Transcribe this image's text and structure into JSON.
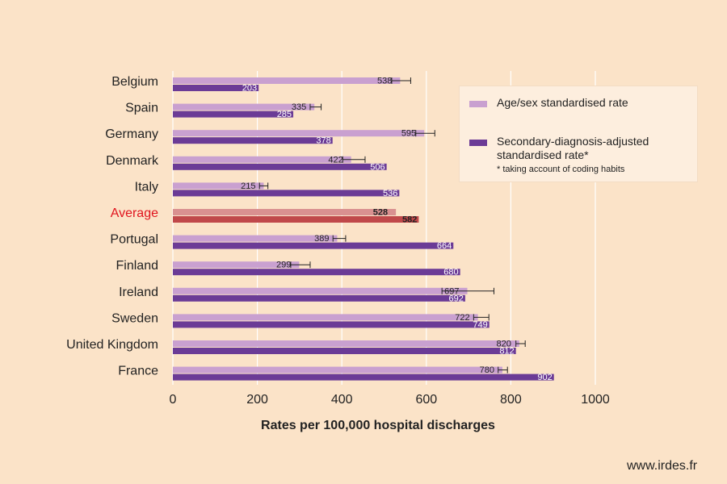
{
  "chart_data": {
    "type": "bar",
    "orientation": "horizontal",
    "categories": [
      "Belgium",
      "Spain",
      "Germany",
      "Denmark",
      "Italy",
      "Average",
      "Portugal",
      "Finland",
      "Ireland",
      "Sweden",
      "United Kingdom",
      "France"
    ],
    "highlight_category": "Average",
    "series": [
      {
        "name": "Age/sex standardised rate",
        "color": "#c9a0d0",
        "highlight_color": "#d99090",
        "values": [
          538,
          335,
          595,
          422,
          215,
          528,
          389,
          299,
          697,
          722,
          820,
          780
        ],
        "error_low": [
          518,
          325,
          575,
          402,
          205,
          null,
          379,
          279,
          637,
          712,
          812,
          770
        ],
        "error_high": [
          563,
          351,
          620,
          455,
          225,
          null,
          409,
          325,
          760,
          748,
          834,
          792
        ]
      },
      {
        "name": "Secondary-diagnosis-adjusted standardised rate*",
        "color": "#6b3b96",
        "highlight_color": "#c0484a",
        "values": [
          203,
          285,
          378,
          506,
          536,
          582,
          664,
          680,
          692,
          749,
          812,
          902
        ]
      }
    ],
    "xlabel": "Rates per 100,000 hospital discharges",
    "xlim": [
      0,
      1000
    ],
    "xticks": [
      "0",
      "200",
      "400",
      "600",
      "800",
      "1000"
    ],
    "grid": "vertical",
    "legend_position": "top-right",
    "legend_note": "* taking account of coding habits"
  },
  "source": "www.irdes.fr",
  "colors": {
    "background": "#fbe3c8",
    "gridline": "#ffffff",
    "highlight_label": "#e0141e",
    "text": "#222222"
  }
}
